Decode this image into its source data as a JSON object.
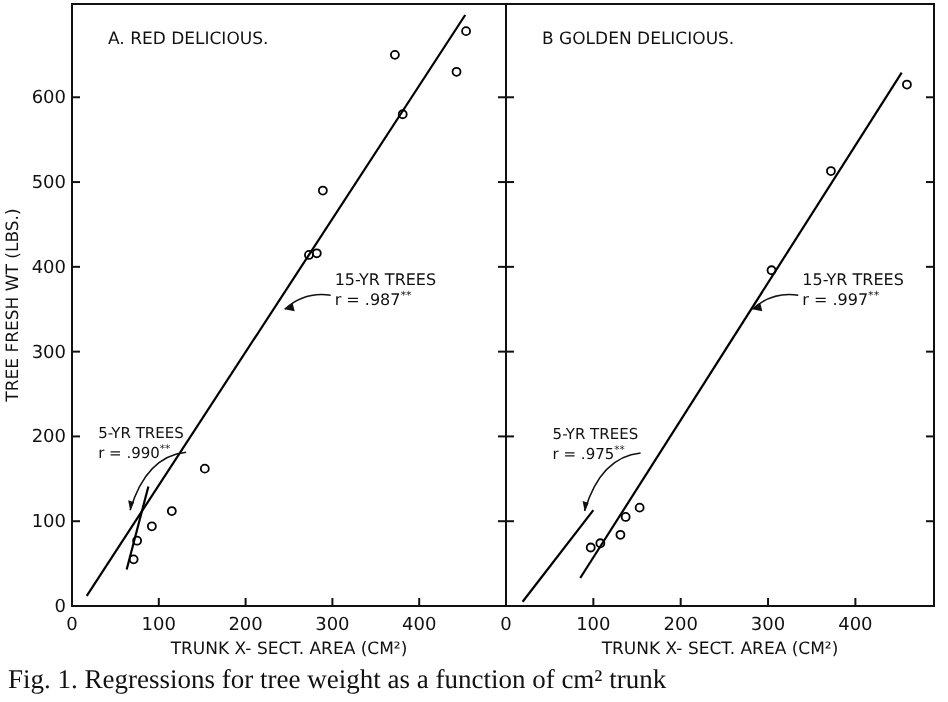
{
  "chart_data": [
    {
      "type": "scatter",
      "title": "A. RED DELICIOUS.",
      "xlabel": "TRUNK X- SECT. AREA (CM²)",
      "ylabel": "TREE FRESH WT (LBS.)",
      "xlim": [
        0,
        500
      ],
      "ylim": [
        0,
        710
      ],
      "xticks": [
        0,
        100,
        200,
        300,
        400
      ],
      "yticks": [
        0,
        100,
        200,
        300,
        400,
        500,
        600
      ],
      "grid": false,
      "series": [
        {
          "marker": "circle",
          "color": "#000000",
          "x": [
            71,
            75,
            92,
            115,
            153,
            273,
            282,
            289,
            372,
            381,
            443,
            454
          ],
          "values": [
            55,
            77,
            94,
            112,
            162,
            414,
            416,
            490,
            650,
            580,
            630,
            678
          ]
        },
        {
          "type": "line",
          "color": "#000000",
          "x": [
            63,
            88
          ],
          "values": [
            43,
            141
          ]
        },
        {
          "type": "line",
          "color": "#000000",
          "x": [
            17,
            453
          ],
          "values": [
            12,
            697
          ]
        }
      ],
      "annotations": [
        {
          "text": "5-YR TREES\nr = .990$^{**}$",
          "x": 67,
          "y": 113
        },
        {
          "text": "15-YR TREES\nr = .987$^{**}$",
          "x": 245,
          "y": 350
        }
      ]
    },
    {
      "type": "scatter",
      "title": "B GOLDEN DELICIOUS.",
      "xlabel": "TRUNK X- SECT. AREA (CM²)",
      "xlim": [
        0,
        490
      ],
      "ylim": [
        0,
        710
      ],
      "xticks": [
        0,
        100,
        200,
        300,
        400
      ],
      "yticks": [
        0,
        100,
        200,
        300,
        400,
        500,
        600
      ],
      "tick_labels": "x",
      "grid": false,
      "series": [
        {
          "marker": "circle",
          "color": "#000000",
          "x": [
            97,
            108,
            131,
            137,
            153,
            304,
            372,
            459
          ],
          "values": [
            69,
            74,
            84,
            105,
            116,
            396,
            513,
            615
          ]
        },
        {
          "type": "line",
          "color": "#000000",
          "x": [
            19,
            100
          ],
          "values": [
            5,
            113
          ]
        },
        {
          "type": "line",
          "color": "#000000",
          "x": [
            85,
            453
          ],
          "values": [
            33,
            629
          ]
        }
      ],
      "annotations": [
        {
          "text": "5-YR TREES\nr = .975$^{**}$",
          "x": 90,
          "y": 112
        },
        {
          "text": "15-YR TREES\nr = .997$^{**}$",
          "x": 282,
          "y": 350
        },
        "Fig. 1. Regressions for tree weight as a function of cm² trunk"
      ]
    }
  ]
}
